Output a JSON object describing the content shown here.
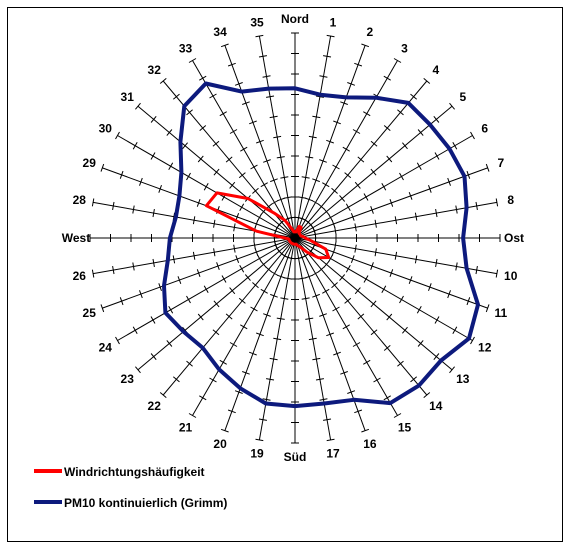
{
  "chart_data": {
    "type": "radar",
    "directions": [
      "Nord",
      "1",
      "2",
      "3",
      "4",
      "5",
      "6",
      "7",
      "8",
      "Ost",
      "10",
      "11",
      "12",
      "13",
      "14",
      "15",
      "16",
      "17",
      "Süd",
      "19",
      "20",
      "21",
      "22",
      "23",
      "24",
      "25",
      "26",
      "West",
      "28",
      "29",
      "30",
      "31",
      "32",
      "33",
      "34",
      "35"
    ],
    "rmax": 10,
    "series": [
      {
        "name": "Windrichtungshäufigkeit",
        "color": "#ff0000",
        "values": [
          0.3,
          0.3,
          0.6,
          0.6,
          0.3,
          0.3,
          0.3,
          0.3,
          0.4,
          0.5,
          0.8,
          1.6,
          1.9,
          1.5,
          0.9,
          0.5,
          0.4,
          0.3,
          0.3,
          0.3,
          0.3,
          0.3,
          0.3,
          0.3,
          0.3,
          0.3,
          0.3,
          0.5,
          1.9,
          4.6,
          4.4,
          3.0,
          1.6,
          1.0,
          0.5,
          0.3
        ]
      },
      {
        "name": "PM10 kontinuierlich (Grimm)",
        "color": "#0d1a7d",
        "values": [
          7.3,
          7.1,
          7.3,
          7.9,
          8.6,
          8.6,
          8.7,
          8.8,
          8.5,
          8.2,
          8.5,
          9.5,
          9.8,
          9.3,
          9.4,
          9.3,
          8.4,
          8.2,
          8.2,
          8.2,
          7.8,
          7.4,
          7.0,
          7.1,
          7.3,
          6.8,
          6.3,
          6.1,
          5.9,
          6.0,
          6.4,
          7.3,
          8.4,
          8.7,
          7.6,
          7.4
        ]
      }
    ]
  },
  "legend": [
    {
      "label": "Windrichtungshäufigkeit",
      "color": "#ff0000"
    },
    {
      "label": "PM10 kontinuierlich (Grimm)",
      "color": "#0d1a7d"
    }
  ]
}
